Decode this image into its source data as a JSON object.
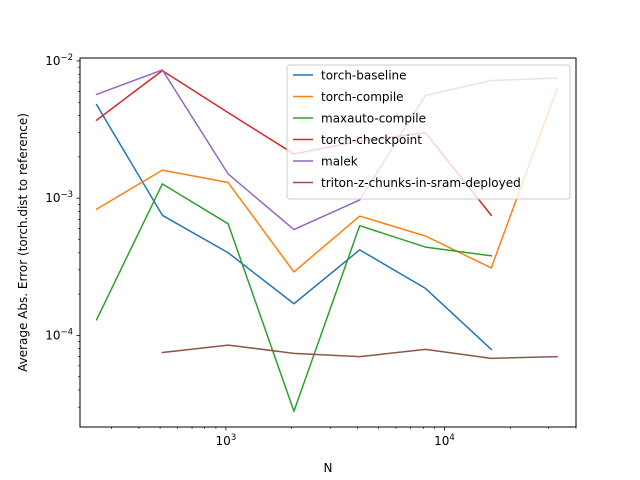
{
  "chart_data": {
    "type": "line",
    "xlabel": "N",
    "ylabel": "Average Abs. Error (torch.dist to reference)",
    "xscale": "log",
    "yscale": "log",
    "xlim": [
      215,
      40000
    ],
    "ylim": [
      2.15e-05,
      0.0105
    ],
    "grid": false,
    "legend_position": "top-right",
    "x_major_ticks": [
      {
        "value": 1000,
        "label": "10",
        "exp": "3"
      },
      {
        "value": 10000,
        "label": "10",
        "exp": "4"
      }
    ],
    "y_major_ticks": [
      {
        "value": 0.0001,
        "label": "10",
        "exp": "−4"
      },
      {
        "value": 0.001,
        "label": "10",
        "exp": "−3"
      },
      {
        "value": 0.01,
        "label": "10",
        "exp": "−2"
      }
    ],
    "series": [
      {
        "name": "torch-baseline",
        "color": "#1f77b4",
        "x": [
          256,
          512,
          1024,
          2048,
          4096,
          8192,
          16384
        ],
        "values": [
          0.0048,
          0.00075,
          0.0004,
          0.00017,
          0.00042,
          0.00022,
          7.9e-05
        ]
      },
      {
        "name": "torch-compile",
        "color": "#ff7f0e",
        "x": [
          256,
          512,
          1024,
          2048,
          4096,
          8192,
          16384,
          32768
        ],
        "values": [
          0.00083,
          0.0016,
          0.0013,
          0.00029,
          0.00074,
          0.00053,
          0.00031,
          0.0063
        ]
      },
      {
        "name": "maxauto-compile",
        "color": "#2ca02c",
        "x": [
          256,
          512,
          1024,
          2048,
          4096,
          8192,
          16384
        ],
        "values": [
          0.00013,
          0.00127,
          0.00065,
          2.8e-05,
          0.00063,
          0.00044,
          0.00038
        ]
      },
      {
        "name": "torch-checkpoint",
        "color": "#d62728",
        "x": [
          256,
          512,
          1024,
          2048,
          4096,
          8192,
          16384
        ],
        "values": [
          0.0037,
          0.0085,
          0.0042,
          0.0021,
          0.0026,
          0.003,
          0.00075
        ]
      },
      {
        "name": "malek",
        "color": "#9467bd",
        "x": [
          256,
          512,
          1024,
          2048,
          4096,
          8192,
          16384,
          32768
        ],
        "values": [
          0.0057,
          0.0086,
          0.0015,
          0.00059,
          0.00097,
          0.0056,
          0.0072,
          0.0075
        ]
      },
      {
        "name": "triton-z-chunks-in-sram-deployed",
        "color": "#8c564b",
        "x": [
          512,
          1024,
          2048,
          4096,
          8192,
          16384,
          32768
        ],
        "values": [
          7.5e-05,
          8.5e-05,
          7.4e-05,
          7e-05,
          7.9e-05,
          6.8e-05,
          7e-05
        ]
      }
    ]
  }
}
